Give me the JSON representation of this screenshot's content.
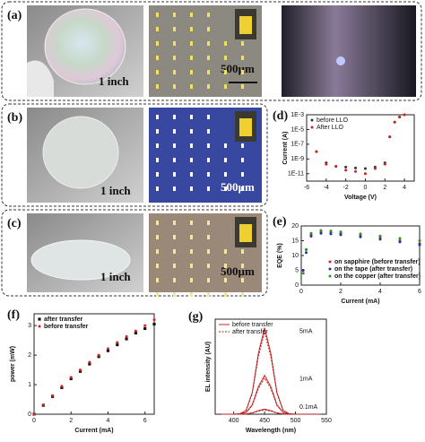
{
  "panels": {
    "a": "(a)",
    "b": "(b)",
    "c": "(c)"
  },
  "scale_bars": {
    "inch": "1 inch",
    "micron": "500µm"
  },
  "chart_data": [
    {
      "type": "scatter",
      "label": "(d)",
      "xlabel": "Voltage (V)",
      "ylabel": "Current (A)",
      "log_y": true,
      "x": [
        -5,
        -4,
        -3,
        -2,
        -1,
        0,
        1,
        2,
        2.5,
        3,
        3.5,
        4
      ],
      "series": [
        {
          "name": "before LLO",
          "color": "#333333",
          "marker": "circle",
          "values": [
            1e-08,
            3e-10,
            1e-10,
            8e-11,
            6e-11,
            5e-11,
            8e-11,
            3e-10,
            1e-06,
            0.0001,
            0.0005,
            0.001
          ]
        },
        {
          "name": "After LLO",
          "color": "#cc2222",
          "marker": "circle",
          "values": [
            1e-08,
            2e-10,
            1e-10,
            3e-11,
            2e-11,
            1e-11,
            5e-11,
            2e-10,
            1e-06,
            0.0001,
            0.0005,
            0.001
          ]
        }
      ],
      "xlim": [
        -6,
        5
      ],
      "xticks": [
        -6,
        -4,
        -2,
        0,
        2,
        4
      ],
      "ylim": [
        1e-12,
        0.001
      ],
      "yticks": [
        {
          "value": 0.001,
          "label": "1E-3"
        },
        {
          "value": 1e-05,
          "label": "1E-5"
        },
        {
          "value": 1e-07,
          "label": "1E-7"
        },
        {
          "value": 1e-09,
          "label": "1E-9"
        },
        {
          "value": 1e-11,
          "label": "1E-11"
        }
      ],
      "legend": "upper left"
    },
    {
      "type": "scatter",
      "label": "(e)",
      "xlabel": "Current (mA)",
      "ylabel": "EQE (%)",
      "x": [
        0.1,
        0.25,
        0.5,
        1,
        1.5,
        2,
        3,
        4,
        5,
        6
      ],
      "series": [
        {
          "name": "on sapphire (before transfer)",
          "color": "#cc2222",
          "marker": "circle",
          "values": [
            5,
            12,
            17,
            18,
            17.8,
            17.5,
            16.8,
            16,
            15,
            14
          ]
        },
        {
          "name": "on the tape (after transfer)",
          "color": "#2233aa",
          "marker": "circle",
          "values": [
            5,
            11,
            16.5,
            17.5,
            17.3,
            17,
            16.3,
            15.5,
            14.6,
            13.6
          ]
        },
        {
          "name": "on the copper (after transfer)",
          "color": "#229922",
          "marker": "circle",
          "values": [
            4,
            12,
            17.5,
            18.5,
            18.3,
            18,
            17.3,
            16.6,
            15.8,
            15
          ]
        }
      ],
      "xlim": [
        0,
        6
      ],
      "xticks": [
        0,
        2,
        4,
        6
      ],
      "ylim": [
        0,
        20
      ],
      "yticks": [
        0,
        5,
        10,
        15,
        20
      ],
      "legend": "lower right"
    },
    {
      "type": "scatter",
      "label": "(f)",
      "xlabel": "Current (mA)",
      "ylabel": "power (mW)",
      "x": [
        0,
        0.5,
        1,
        1.5,
        2,
        2.5,
        3,
        3.5,
        4,
        4.5,
        5,
        5.5,
        6,
        6.5
      ],
      "series": [
        {
          "name": "after transfer",
          "color": "#111111",
          "marker": "square",
          "values": [
            0,
            0.3,
            0.6,
            0.9,
            1.2,
            1.45,
            1.7,
            1.95,
            2.15,
            2.35,
            2.55,
            2.75,
            2.9,
            3.05
          ]
        },
        {
          "name": "before transfer",
          "color": "#dd2222",
          "marker": "circle",
          "values": [
            0,
            0.32,
            0.63,
            0.95,
            1.25,
            1.5,
            1.76,
            2,
            2.22,
            2.43,
            2.63,
            2.82,
            3,
            3.2
          ]
        }
      ],
      "xlim": [
        0,
        6.5
      ],
      "xticks": [
        0,
        2,
        4,
        6
      ],
      "ylim": [
        0,
        3.4
      ],
      "yticks": [
        0,
        1,
        2,
        3
      ],
      "legend": "upper left"
    },
    {
      "type": "line",
      "label": "(g)",
      "xlabel": "Wavelength (nm)",
      "ylabel": "EL intensity (AU)",
      "x": [
        380,
        390,
        400,
        410,
        420,
        430,
        440,
        450,
        460,
        470,
        480,
        490,
        500,
        510,
        520,
        530,
        540
      ],
      "series": [
        {
          "name": "before transfer",
          "color": "#cc2222",
          "dash": false,
          "values": [
            [
              0,
              0,
              0,
              0.004,
              0.044,
              0.25,
              0.707,
              1,
              0.707,
              0.25,
              0.044,
              0.004,
              0,
              0,
              0,
              0,
              0
            ],
            [
              0,
              0,
              0,
              0.002,
              0.02,
              0.11,
              0.32,
              0.45,
              0.32,
              0.11,
              0.02,
              0.002,
              0,
              0,
              0,
              0,
              0
            ],
            [
              0,
              0,
              0,
              0,
              0.003,
              0.015,
              0.042,
              0.06,
              0.042,
              0.015,
              0.003,
              0,
              0,
              0,
              0,
              0,
              0
            ]
          ]
        },
        {
          "name": "after transfer",
          "color": "#aa2222",
          "dash": true,
          "values": [
            [
              0,
              0,
              0,
              0.004,
              0.042,
              0.24,
              0.67,
              0.95,
              0.67,
              0.24,
              0.042,
              0.004,
              0,
              0,
              0,
              0,
              0
            ],
            [
              0,
              0,
              0,
              0.002,
              0.019,
              0.1,
              0.3,
              0.42,
              0.3,
              0.1,
              0.019,
              0.002,
              0,
              0,
              0,
              0,
              0
            ],
            [
              0,
              0,
              0,
              0,
              0.003,
              0.013,
              0.036,
              0.05,
              0.036,
              0.013,
              0.003,
              0,
              0,
              0,
              0,
              0,
              0
            ]
          ]
        }
      ],
      "annotations": [
        "5mA",
        "1mA",
        "0.1mA"
      ],
      "xlim": [
        370,
        550
      ],
      "xticks": [
        400,
        450,
        500,
        550
      ],
      "ylim": [
        0,
        1.1
      ],
      "legend": "upper left"
    }
  ]
}
